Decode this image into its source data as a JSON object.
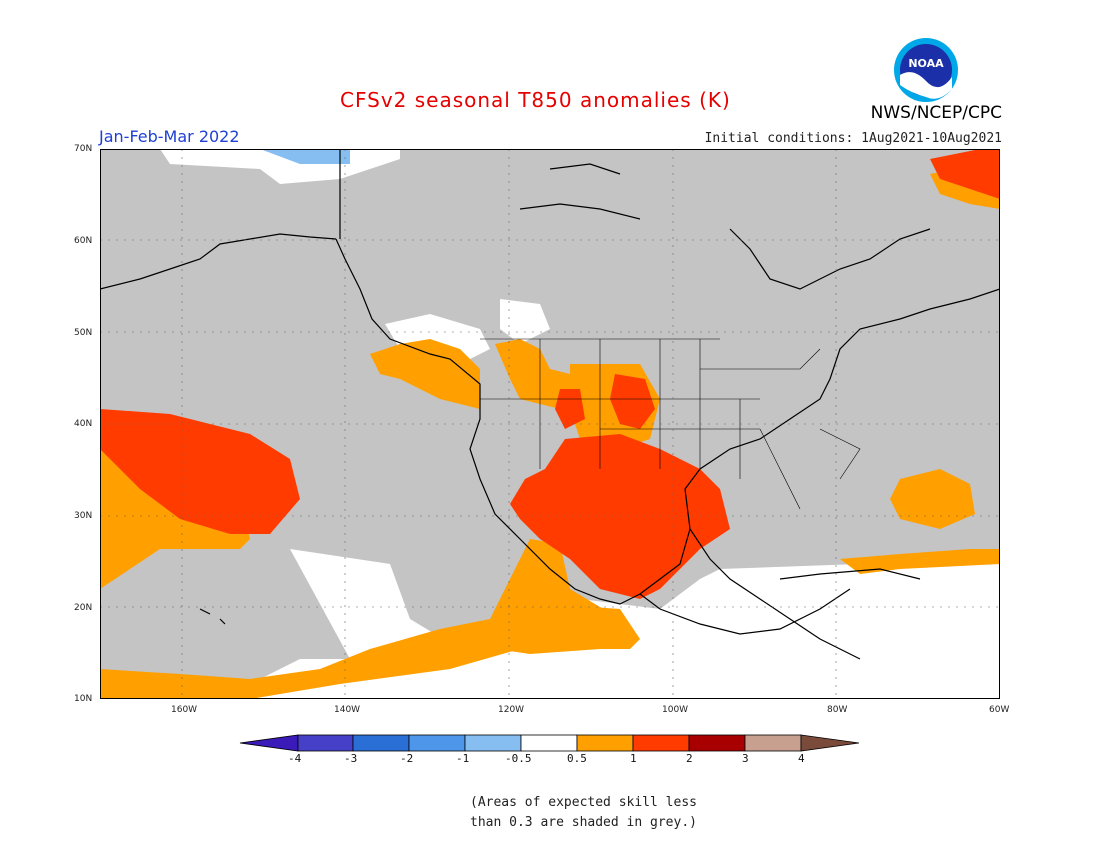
{
  "title": "CFSv2 seasonal T850 anomalies (K)",
  "agency": "NWS/NCEP/CPC",
  "logo_text": "NOAA",
  "period": "Jan-Feb-Mar 2022",
  "initial_conditions": "Initial conditions: 1Aug2021-10Aug2021",
  "lat_labels": [
    "70N",
    "60N",
    "50N",
    "40N",
    "30N",
    "20N",
    "10N"
  ],
  "lon_labels": [
    "160W",
    "140W",
    "120W",
    "100W",
    "80W",
    "60W"
  ],
  "colorbar": {
    "labels": [
      "-4",
      "-3",
      "-2",
      "-1",
      "-0.5",
      "0.5",
      "1",
      "2",
      "3",
      "4"
    ],
    "colors": [
      "#3a1ab8",
      "#4640c8",
      "#2a6fd6",
      "#4e96ea",
      "#86bef2",
      "#ffffff",
      "#ff9f00",
      "#ff3b00",
      "#a80000",
      "#c8a090",
      "#7a4a3a"
    ]
  },
  "note_line1": "(Areas of expected skill less",
  "note_line2": "than 0.3 are shaded in grey.)",
  "colors": {
    "grey": "#c4c4c4",
    "white": "#ffffff",
    "orange": "#ff9f00",
    "red": "#ff3b00",
    "lightblue": "#86bef2"
  }
}
